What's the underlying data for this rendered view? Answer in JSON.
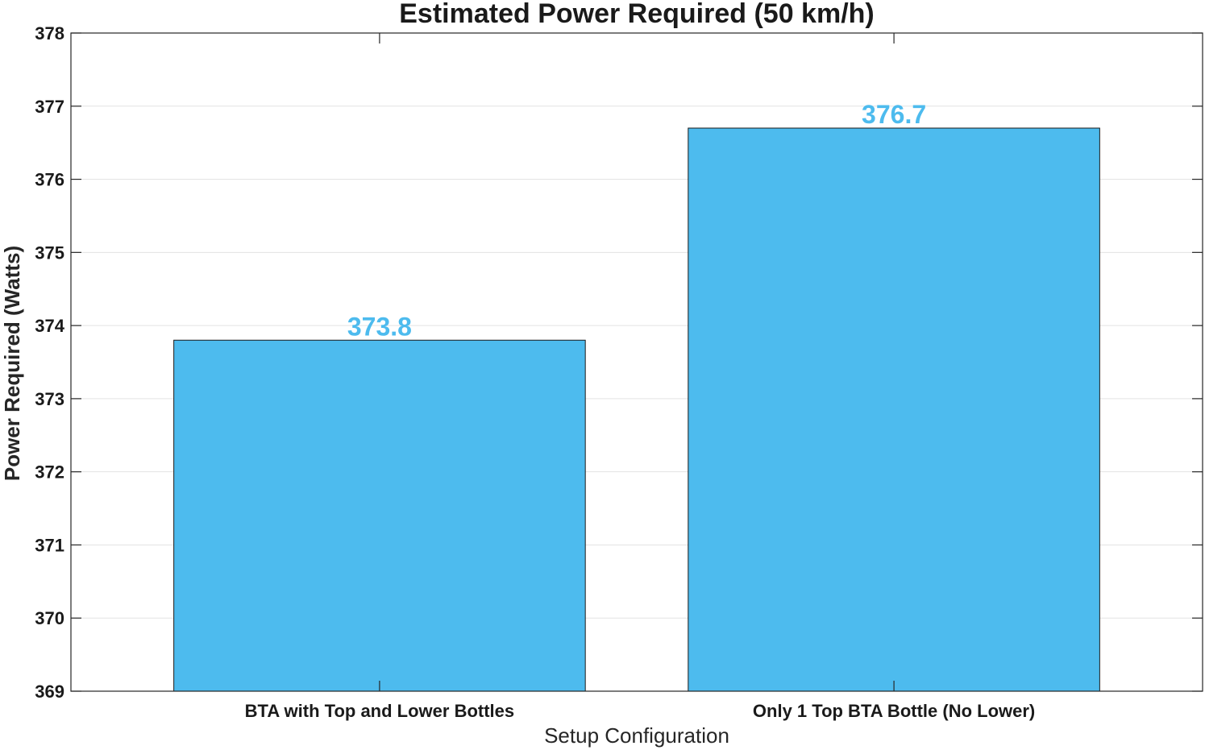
{
  "chart_data": {
    "type": "bar",
    "title": "Estimated Power Required (50 km/h)",
    "xlabel": "Setup Configuration",
    "ylabel": "Power Required (Watts)",
    "categories": [
      "BTA with Top and Lower Bottles",
      "Only 1 Top BTA Bottle (No Lower)"
    ],
    "values": [
      373.8,
      376.7
    ],
    "value_labels": [
      "373.8",
      "376.7"
    ],
    "ylim": [
      369,
      378
    ],
    "yticks": [
      369,
      370,
      371,
      372,
      373,
      374,
      375,
      376,
      377,
      378
    ],
    "grid": true,
    "legend": "none",
    "bar_color": "#4DBBEE",
    "label_color": "#4DBBEE"
  }
}
